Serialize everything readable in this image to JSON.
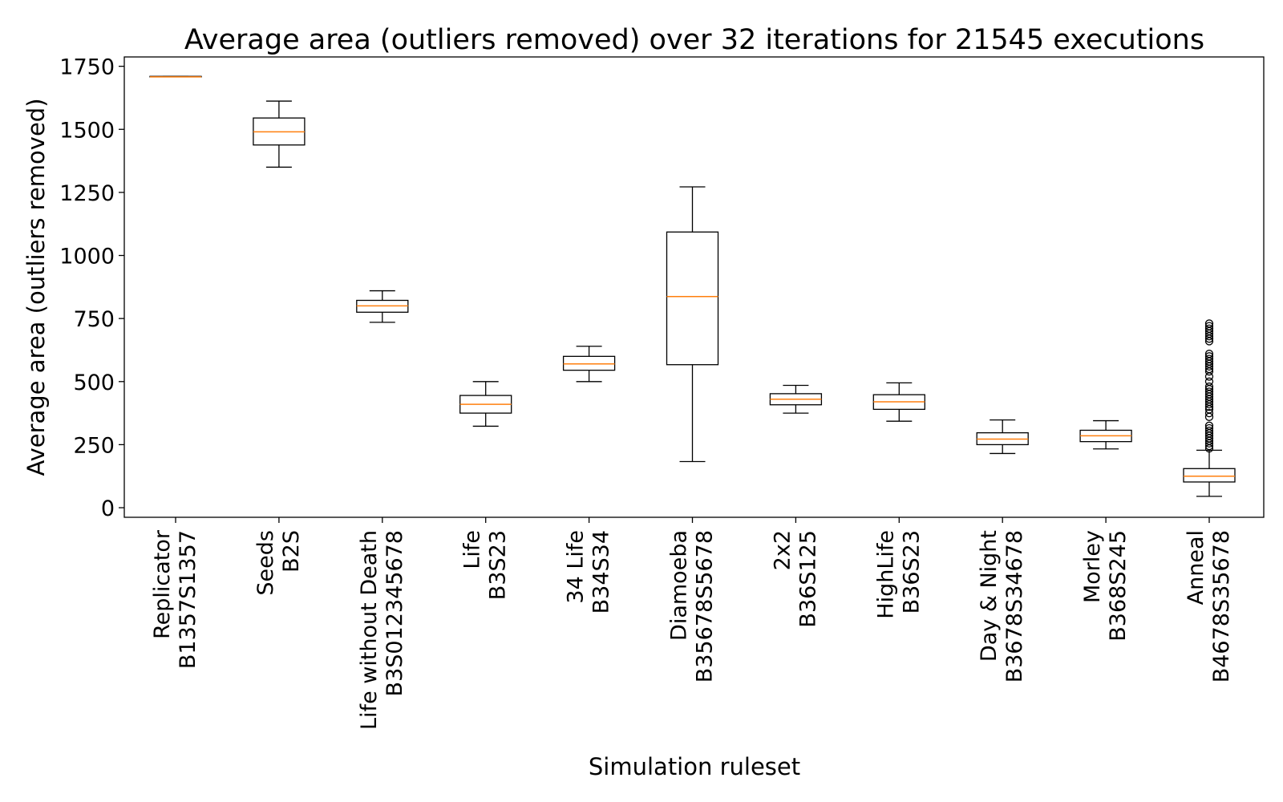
{
  "chart_data": {
    "type": "box",
    "title": "Average area (outliers removed) over 32 iterations for 21545 executions",
    "xlabel": "Simulation ruleset",
    "ylabel": "Average area (outliers removed)",
    "ylim": [
      -38,
      1787
    ],
    "yticks": [
      "0",
      "250",
      "500",
      "750",
      "1000",
      "1250",
      "1500",
      "1750"
    ],
    "grid": false,
    "categories": [
      {
        "name": "Replicator",
        "rule": "B1357S1357"
      },
      {
        "name": "Seeds",
        "rule": "B2S"
      },
      {
        "name": "Life without Death",
        "rule": "B3S012345678"
      },
      {
        "name": "Life",
        "rule": "B3S23"
      },
      {
        "name": "34 Life",
        "rule": "B34S34"
      },
      {
        "name": "Diamoeba",
        "rule": "B35678S5678"
      },
      {
        "name": "2x2",
        "rule": "B36S125"
      },
      {
        "name": "HighLife",
        "rule": "B36S23"
      },
      {
        "name": "Day & Night",
        "rule": "B3678S34678"
      },
      {
        "name": "Morley",
        "rule": "B368S245"
      },
      {
        "name": "Anneal",
        "rule": "B4678S35678"
      }
    ],
    "boxes": [
      {
        "whislo": 1708,
        "q1": 1708,
        "med": 1708,
        "q3": 1710,
        "whishi": 1710,
        "fliers": []
      },
      {
        "whislo": 1350,
        "q1": 1438,
        "med": 1490,
        "q3": 1545,
        "whishi": 1612,
        "fliers": []
      },
      {
        "whislo": 735,
        "q1": 775,
        "med": 800,
        "q3": 822,
        "whishi": 860,
        "fliers": []
      },
      {
        "whislo": 323,
        "q1": 375,
        "med": 410,
        "q3": 445,
        "whishi": 500,
        "fliers": []
      },
      {
        "whislo": 500,
        "q1": 545,
        "med": 570,
        "q3": 600,
        "whishi": 640,
        "fliers": []
      },
      {
        "whislo": 183,
        "q1": 567,
        "med": 837,
        "q3": 1093,
        "whishi": 1272,
        "fliers": []
      },
      {
        "whislo": 375,
        "q1": 408,
        "med": 430,
        "q3": 452,
        "whishi": 485,
        "fliers": []
      },
      {
        "whislo": 343,
        "q1": 390,
        "med": 420,
        "q3": 448,
        "whishi": 495,
        "fliers": []
      },
      {
        "whislo": 215,
        "q1": 250,
        "med": 272,
        "q3": 297,
        "whishi": 348,
        "fliers": []
      },
      {
        "whislo": 233,
        "q1": 262,
        "med": 285,
        "q3": 307,
        "whishi": 345,
        "fliers": []
      },
      {
        "whislo": 45,
        "q1": 102,
        "med": 125,
        "q3": 155,
        "whishi": 228,
        "fliers": [
          235,
          245,
          255,
          265,
          275,
          285,
          295,
          305,
          315,
          325,
          360,
          375,
          390,
          400,
          410,
          420,
          430,
          440,
          450,
          460,
          470,
          480,
          500,
          520,
          540,
          550,
          560,
          570,
          580,
          590,
          600,
          610,
          660,
          670,
          680,
          690,
          700,
          710,
          720,
          730
        ]
      }
    ],
    "colors": {
      "box": "#000000",
      "median": "#ff7f0e",
      "flier": "#000000"
    }
  }
}
